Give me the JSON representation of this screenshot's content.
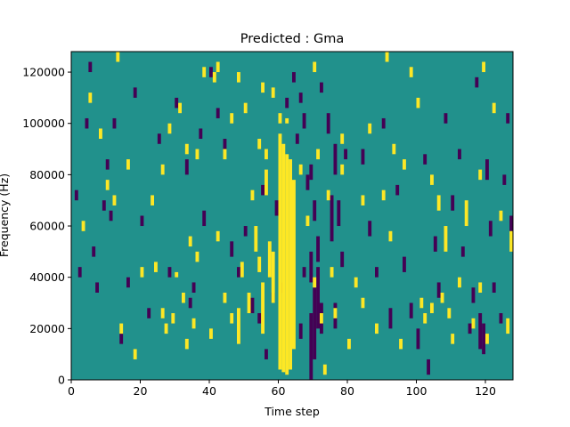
{
  "chart_data": {
    "type": "heatmap",
    "title": "Predicted : Gma",
    "xlabel": "Time step",
    "ylabel": "Frequency (Hz)",
    "xlim": [
      0,
      128
    ],
    "ylim": [
      0,
      128000
    ],
    "xticks": [
      0,
      20,
      40,
      60,
      80,
      100,
      120
    ],
    "yticks": [
      0,
      20000,
      40000,
      60000,
      80000,
      100000,
      120000
    ],
    "ytick_labels": [
      "0",
      "20000",
      "40000",
      "60000",
      "80000",
      "100000",
      "120000"
    ],
    "n_time_steps": 128,
    "n_freq_bins": 128,
    "grid": false,
    "colormap": "viridis",
    "colors": {
      "background": "#21918c",
      "high": "#fde725",
      "low": "#440154"
    },
    "high_cells": [
      [
        60,
        4000,
        96000
      ],
      [
        61,
        3000,
        92000
      ],
      [
        62,
        2000,
        88000
      ],
      [
        63,
        4000,
        86000
      ],
      [
        64,
        12000,
        78000
      ],
      [
        60,
        100000,
        104000
      ],
      [
        62,
        100000,
        102000
      ],
      [
        57,
        40000,
        54000
      ],
      [
        58,
        30000,
        50000
      ],
      [
        56,
        72000,
        82000
      ],
      [
        55,
        18000,
        38000
      ],
      [
        48,
        14000,
        28000
      ],
      [
        49,
        40000,
        46000
      ],
      [
        51,
        26000,
        34000
      ],
      [
        53,
        50000,
        60000
      ],
      [
        54,
        42000,
        48000
      ],
      [
        44,
        30000,
        34000
      ],
      [
        46,
        22000,
        26000
      ],
      [
        42,
        54000,
        58000
      ],
      [
        40,
        16000,
        20000
      ],
      [
        36,
        46000,
        50000
      ],
      [
        35,
        20000,
        24000
      ],
      [
        34,
        52000,
        56000
      ],
      [
        33,
        12000,
        16000
      ],
      [
        32,
        30000,
        34000
      ],
      [
        30,
        40000,
        42000
      ],
      [
        29,
        22000,
        26000
      ],
      [
        27,
        18000,
        22000
      ],
      [
        26,
        24000,
        28000
      ],
      [
        24,
        42000,
        46000
      ],
      [
        23,
        68000,
        72000
      ],
      [
        20,
        40000,
        44000
      ],
      [
        18,
        8000,
        12000
      ],
      [
        16,
        82000,
        86000
      ],
      [
        14,
        18000,
        22000
      ],
      [
        12,
        68000,
        72000
      ],
      [
        10,
        74000,
        78000
      ],
      [
        8,
        94000,
        98000
      ],
      [
        5,
        108000,
        112000
      ],
      [
        3,
        58000,
        62000
      ],
      [
        26,
        80000,
        84000
      ],
      [
        28,
        96000,
        100000
      ],
      [
        31,
        104000,
        108000
      ],
      [
        33,
        88000,
        92000
      ],
      [
        36,
        86000,
        90000
      ],
      [
        38,
        118000,
        122000
      ],
      [
        42,
        120000,
        124000
      ],
      [
        44,
        86000,
        90000
      ],
      [
        46,
        100000,
        104000
      ],
      [
        48,
        116000,
        120000
      ],
      [
        50,
        104000,
        108000
      ],
      [
        52,
        70000,
        74000
      ],
      [
        54,
        90000,
        94000
      ],
      [
        56,
        86000,
        90000
      ],
      [
        58,
        110000,
        114000
      ],
      [
        66,
        80000,
        84000
      ],
      [
        68,
        60000,
        64000
      ],
      [
        70,
        36000,
        40000
      ],
      [
        71,
        86000,
        90000
      ],
      [
        72,
        22000,
        26000
      ],
      [
        73,
        2000,
        6000
      ],
      [
        74,
        70000,
        74000
      ],
      [
        75,
        40000,
        44000
      ],
      [
        76,
        24000,
        28000
      ],
      [
        78,
        80000,
        84000
      ],
      [
        80,
        12000,
        16000
      ],
      [
        82,
        36000,
        40000
      ],
      [
        84,
        28000,
        32000
      ],
      [
        86,
        96000,
        100000
      ],
      [
        88,
        18000,
        22000
      ],
      [
        90,
        70000,
        74000
      ],
      [
        92,
        54000,
        58000
      ],
      [
        93,
        88000,
        92000
      ],
      [
        95,
        12000,
        16000
      ],
      [
        96,
        82000,
        86000
      ],
      [
        98,
        118000,
        122000
      ],
      [
        100,
        106000,
        110000
      ],
      [
        101,
        28000,
        32000
      ],
      [
        102,
        22000,
        26000
      ],
      [
        104,
        76000,
        80000
      ],
      [
        106,
        66000,
        72000
      ],
      [
        107,
        30000,
        34000
      ],
      [
        108,
        50000,
        60000
      ],
      [
        109,
        24000,
        28000
      ],
      [
        110,
        14000,
        18000
      ],
      [
        112,
        36000,
        40000
      ],
      [
        114,
        60000,
        70000
      ],
      [
        116,
        20000,
        24000
      ],
      [
        118,
        34000,
        38000
      ],
      [
        120,
        14000,
        18000
      ],
      [
        122,
        104000,
        108000
      ],
      [
        124,
        62000,
        66000
      ],
      [
        126,
        18000,
        24000
      ],
      [
        127,
        50000,
        58000
      ],
      [
        13,
        124000,
        128000
      ],
      [
        41,
        116000,
        120000
      ],
      [
        55,
        112000,
        116000
      ],
      [
        70,
        120000,
        124000
      ],
      [
        78,
        92000,
        96000
      ],
      [
        84,
        68000,
        72000
      ],
      [
        91,
        124000,
        128000
      ],
      [
        104,
        26000,
        30000
      ],
      [
        118,
        78000,
        82000
      ],
      [
        119,
        120000,
        124000
      ]
    ],
    "low_cells": [
      [
        69,
        0,
        26000
      ],
      [
        70,
        8000,
        36000
      ],
      [
        71,
        20000,
        44000
      ],
      [
        72,
        18000,
        30000
      ],
      [
        69,
        38000,
        50000
      ],
      [
        70,
        62000,
        70000
      ],
      [
        71,
        46000,
        56000
      ],
      [
        69,
        78000,
        84000
      ],
      [
        68,
        74000,
        80000
      ],
      [
        67,
        40000,
        44000
      ],
      [
        75,
        54000,
        72000
      ],
      [
        76,
        80000,
        92000
      ],
      [
        77,
        60000,
        70000
      ],
      [
        76,
        20000,
        30000
      ],
      [
        78,
        44000,
        50000
      ],
      [
        74,
        96000,
        104000
      ],
      [
        79,
        86000,
        90000
      ],
      [
        66,
        16000,
        22000
      ],
      [
        67,
        98000,
        104000
      ],
      [
        65,
        92000,
        96000
      ],
      [
        59,
        64000,
        70000
      ],
      [
        58,
        30000,
        34000
      ],
      [
        55,
        72000,
        76000
      ],
      [
        54,
        22000,
        26000
      ],
      [
        56,
        8000,
        12000
      ],
      [
        52,
        26000,
        32000
      ],
      [
        50,
        56000,
        60000
      ],
      [
        48,
        40000,
        44000
      ],
      [
        46,
        48000,
        54000
      ],
      [
        44,
        90000,
        94000
      ],
      [
        42,
        102000,
        106000
      ],
      [
        40,
        118000,
        122000
      ],
      [
        38,
        60000,
        66000
      ],
      [
        37,
        94000,
        98000
      ],
      [
        35,
        34000,
        38000
      ],
      [
        34,
        28000,
        32000
      ],
      [
        33,
        80000,
        86000
      ],
      [
        30,
        106000,
        110000
      ],
      [
        28,
        40000,
        44000
      ],
      [
        25,
        92000,
        96000
      ],
      [
        22,
        24000,
        28000
      ],
      [
        20,
        60000,
        64000
      ],
      [
        18,
        110000,
        114000
      ],
      [
        16,
        36000,
        40000
      ],
      [
        14,
        14000,
        18000
      ],
      [
        12,
        98000,
        102000
      ],
      [
        11,
        62000,
        66000
      ],
      [
        10,
        82000,
        86000
      ],
      [
        9,
        66000,
        70000
      ],
      [
        7,
        34000,
        38000
      ],
      [
        6,
        48000,
        52000
      ],
      [
        5,
        120000,
        124000
      ],
      [
        4,
        98000,
        102000
      ],
      [
        2,
        40000,
        44000
      ],
      [
        1,
        70000,
        74000
      ],
      [
        84,
        84000,
        90000
      ],
      [
        86,
        56000,
        62000
      ],
      [
        88,
        40000,
        44000
      ],
      [
        90,
        98000,
        102000
      ],
      [
        92,
        20000,
        28000
      ],
      [
        94,
        72000,
        76000
      ],
      [
        96,
        42000,
        48000
      ],
      [
        98,
        24000,
        30000
      ],
      [
        100,
        12000,
        20000
      ],
      [
        102,
        84000,
        88000
      ],
      [
        103,
        2000,
        8000
      ],
      [
        105,
        50000,
        56000
      ],
      [
        106,
        32000,
        38000
      ],
      [
        108,
        100000,
        104000
      ],
      [
        110,
        66000,
        72000
      ],
      [
        112,
        86000,
        90000
      ],
      [
        113,
        48000,
        52000
      ],
      [
        115,
        18000,
        22000
      ],
      [
        116,
        30000,
        36000
      ],
      [
        117,
        114000,
        118000
      ],
      [
        118,
        12000,
        26000
      ],
      [
        119,
        10000,
        22000
      ],
      [
        120,
        78000,
        86000
      ],
      [
        121,
        56000,
        62000
      ],
      [
        122,
        34000,
        38000
      ],
      [
        124,
        22000,
        26000
      ],
      [
        125,
        76000,
        80000
      ],
      [
        126,
        100000,
        104000
      ],
      [
        127,
        58000,
        64000
      ],
      [
        60,
        34000,
        38000
      ],
      [
        62,
        106000,
        110000
      ],
      [
        64,
        116000,
        120000
      ],
      [
        66,
        108000,
        112000
      ],
      [
        72,
        112000,
        116000
      ]
    ]
  }
}
